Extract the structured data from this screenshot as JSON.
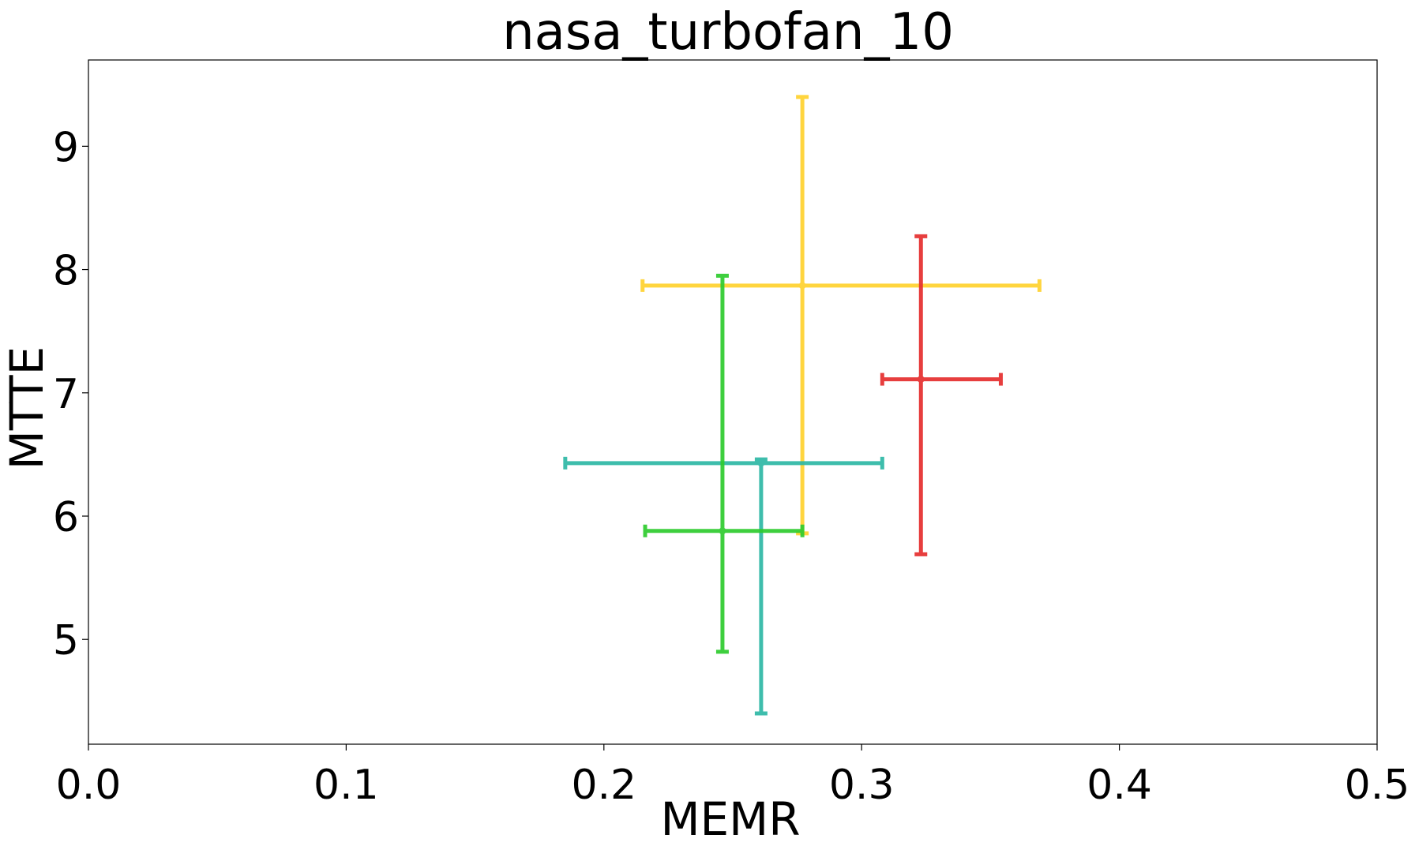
{
  "chart_data": {
    "type": "scatter",
    "title": "nasa_turbofan_10",
    "xlabel": "MEMR",
    "ylabel": "MTTE",
    "xlim": [
      0.0,
      0.5
    ],
    "ylim": [
      4.15,
      9.7
    ],
    "grid": false,
    "x_ticks": [
      "0.0",
      "0.1",
      "0.2",
      "0.3",
      "0.4",
      "0.5"
    ],
    "x_tick_values": [
      0.0,
      0.1,
      0.2,
      0.3,
      0.4,
      0.5
    ],
    "y_ticks": [
      "5",
      "6",
      "7",
      "8",
      "9"
    ],
    "y_tick_values": [
      5,
      6,
      7,
      8,
      9
    ],
    "series": [
      {
        "color": "#FFD22E",
        "x": 0.277,
        "y": 7.87,
        "xerr": [
          0.215,
          0.369
        ],
        "yerr": [
          5.86,
          9.4
        ]
      },
      {
        "color": "#E62E2E",
        "x": 0.323,
        "y": 7.11,
        "xerr": [
          0.308,
          0.354
        ],
        "yerr": [
          5.69,
          8.27
        ]
      },
      {
        "color": "#2EB8A6",
        "x": 0.261,
        "y": 6.43,
        "xerr": [
          0.185,
          0.308
        ],
        "yerr": [
          4.4,
          6.46
        ]
      },
      {
        "color": "#2ECC2E",
        "x": 0.246,
        "y": 5.88,
        "xerr": [
          0.216,
          0.277
        ],
        "yerr": [
          4.9,
          7.95
        ]
      }
    ]
  }
}
